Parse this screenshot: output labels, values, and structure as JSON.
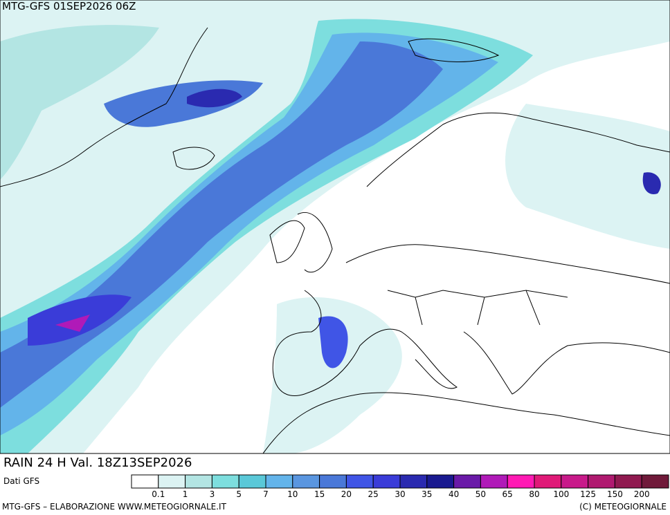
{
  "header": {
    "title": "MTG-GFS 01SEP2026 06Z",
    "product": "RAIN 24 H Val. 18Z13SEP2026"
  },
  "legend": {
    "source": "Dati GFS",
    "colors": [
      "#ffffff",
      "#dcf3f3",
      "#b3e5e3",
      "#7ddede",
      "#5ac8d8",
      "#63b4ea",
      "#5a96e0",
      "#4a78d8",
      "#4055e6",
      "#3a3cd8",
      "#2a2ab0",
      "#1a1a90",
      "#6a1aa8",
      "#b01ab8",
      "#ff1ab4",
      "#e01a78",
      "#c81a8a",
      "#b01a70",
      "#901a50",
      "#701a3a"
    ],
    "ticks": [
      0.1,
      1,
      3,
      5,
      7,
      10,
      15,
      20,
      25,
      30,
      35,
      40,
      50,
      65,
      80,
      100,
      125,
      150,
      200
    ]
  },
  "footer": {
    "left": "MTG-GFS – ELABORAZIONE WWW.METEOGIORNALE.IT",
    "right": "(C) METEOGIORNALE"
  }
}
